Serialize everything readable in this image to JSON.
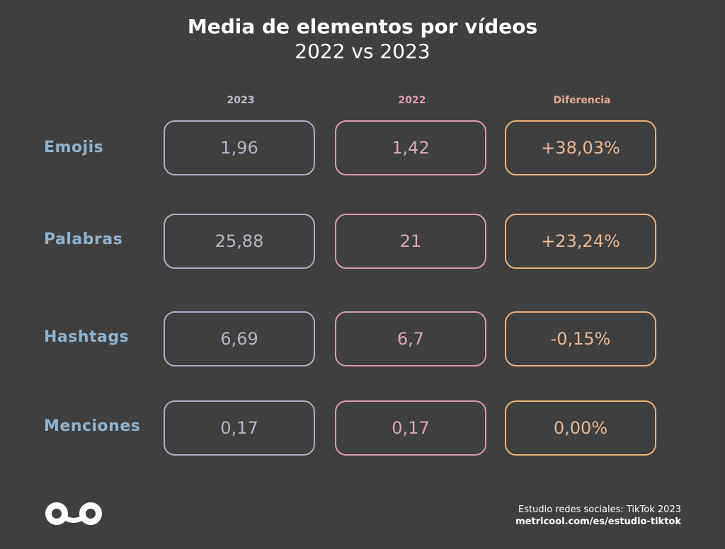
{
  "title": {
    "main": "Media de elementos por vídeos",
    "sub": "2022 vs 2023"
  },
  "columns": [
    {
      "label": "2023",
      "color": "#b9b9cf"
    },
    {
      "label": "2022",
      "color": "#e29bb4"
    },
    {
      "label": "Diferencia",
      "color": "#e7a98f"
    }
  ],
  "rows": [
    {
      "label": "Emojis",
      "v2023": "1,96",
      "v2022": "1,42",
      "diff": "+38,03%"
    },
    {
      "label": "Palabras",
      "v2023": "25,88",
      "v2022": "21",
      "diff": "+23,24%"
    },
    {
      "label": "Hashtags",
      "v2023": "6,69",
      "v2022": "6,7",
      "diff": "-0,15%"
    },
    {
      "label": "Menciones",
      "v2023": "0,17",
      "v2022": "0,17",
      "diff": "0,00%"
    }
  ],
  "footer": {
    "line1": "Estudio redes sociales: TikTok 2023",
    "line2": "metricool.com/es/estudio-tiktok"
  },
  "logo_icon": "metricool-infinity-logo",
  "chart_data": {
    "type": "table",
    "title": "Media de elementos por vídeos",
    "subtitle": "2022 vs 2023",
    "columns": [
      "2023",
      "2022",
      "Diferencia"
    ],
    "rows": [
      "Emojis",
      "Palabras",
      "Hashtags",
      "Menciones"
    ],
    "values_2023": [
      1.96,
      25.88,
      6.69,
      0.17
    ],
    "values_2022": [
      1.42,
      21,
      6.7,
      0.17
    ],
    "difference_percent": [
      38.03,
      23.24,
      -0.15,
      0.0
    ]
  }
}
